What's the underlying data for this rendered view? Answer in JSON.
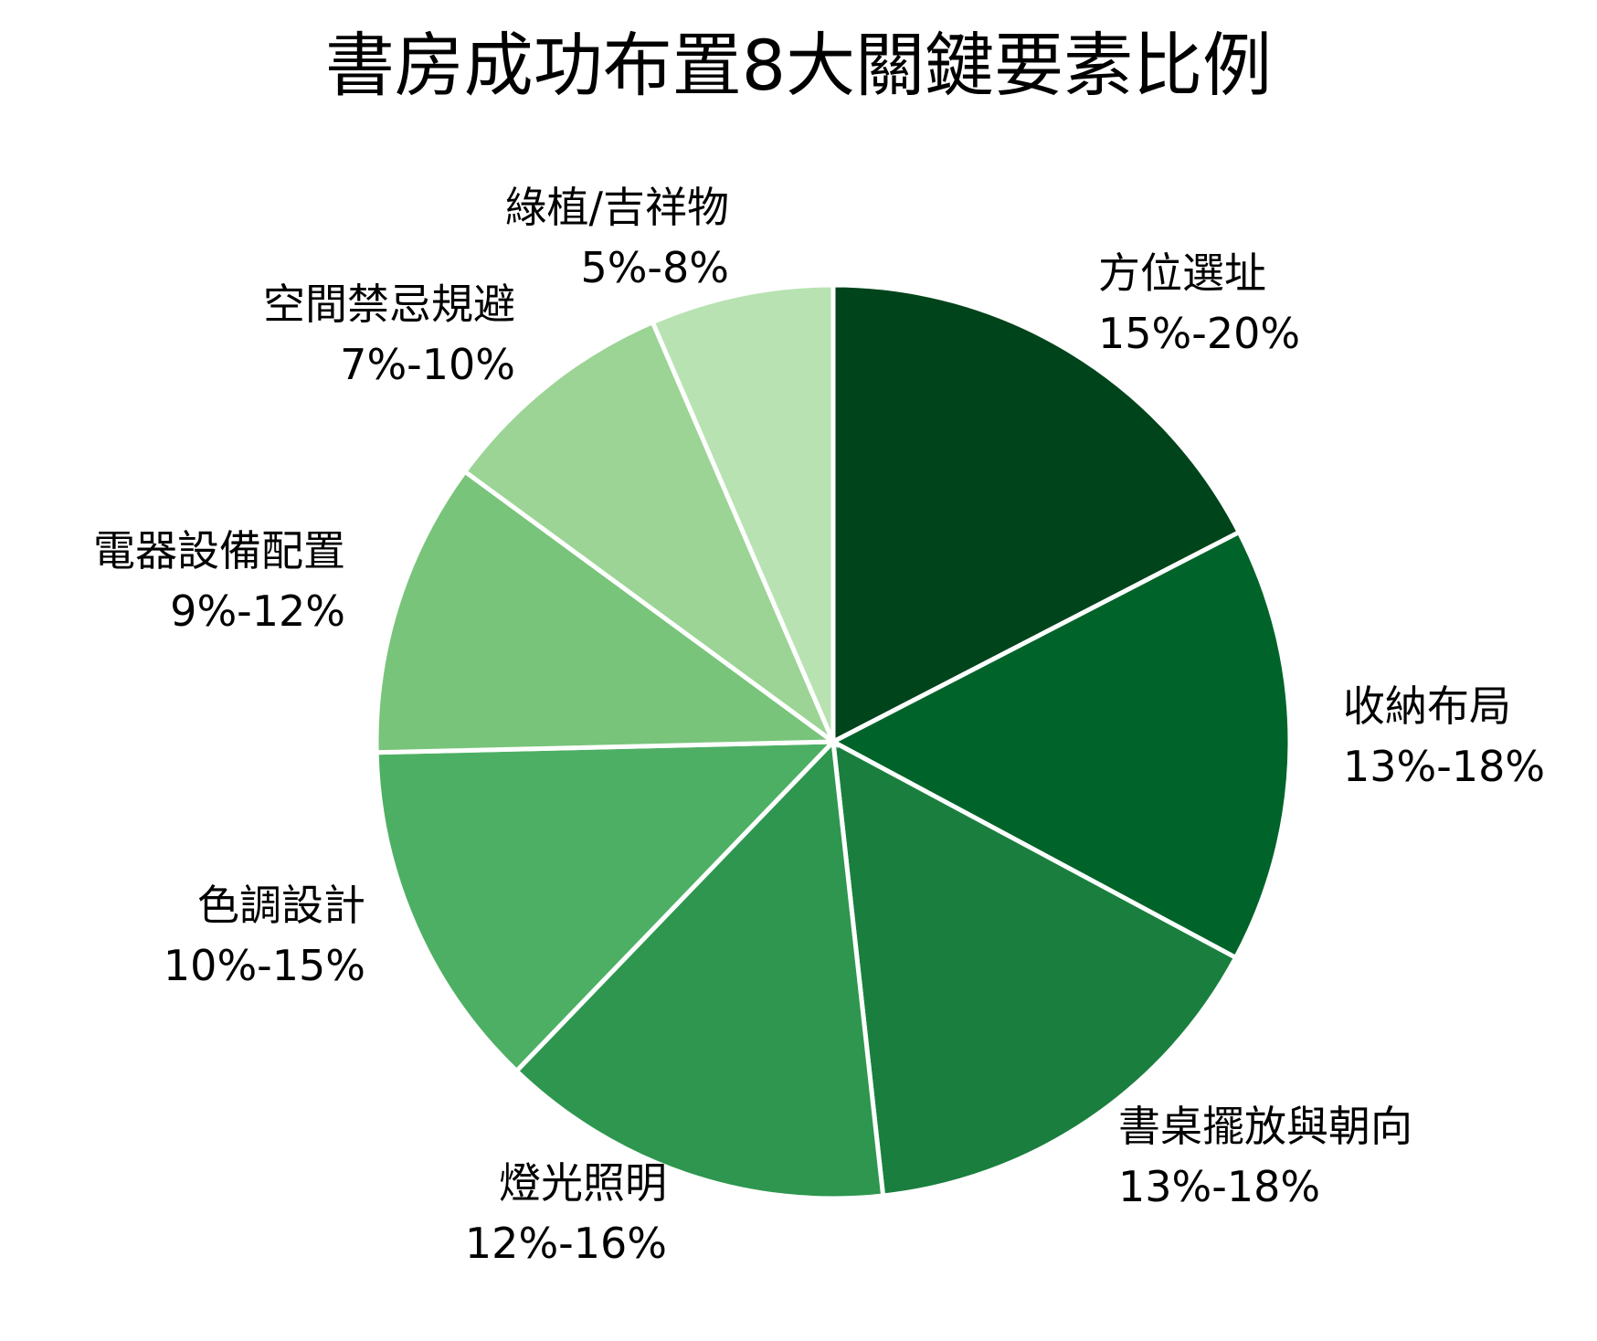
{
  "title": "書房成功布置8大關鍵要素比例",
  "chart_data": {
    "type": "pie",
    "title": "書房成功布置8大關鍵要素比例",
    "categories": [
      "方位選址",
      "收納布局",
      "書桌擺放與朝向",
      "燈光照明",
      "色調設計",
      "電器設備配置",
      "空間禁忌規避",
      "綠植/吉祥物"
    ],
    "range_labels": [
      "15%-20%",
      "13%-18%",
      "13%-18%",
      "12%-16%",
      "10%-15%",
      "9%-12%",
      "7%-10%",
      "5%-8%"
    ],
    "values": [
      17.5,
      15.5,
      15.5,
      14,
      12.5,
      10.5,
      8.5,
      6.5
    ],
    "colors": [
      "#00441b",
      "#00642a",
      "#1a7f3e",
      "#2e964f",
      "#4daf64",
      "#78c47a",
      "#9bd495",
      "#b8e2b2"
    ],
    "start_angle": "12 o'clock, clockwise",
    "legend": "none (labels outside slices)"
  },
  "labels": [
    {
      "name": "方位選址",
      "range": "15%-20%"
    },
    {
      "name": "收納布局",
      "range": "13%-18%"
    },
    {
      "name": "書桌擺放與朝向",
      "range": "13%-18%"
    },
    {
      "name": "燈光照明",
      "range": "12%-16%"
    },
    {
      "name": "色調設計",
      "range": "10%-15%"
    },
    {
      "name": "電器設備配置",
      "range": "9%-12%"
    },
    {
      "name": "空間禁忌規避",
      "range": "7%-10%"
    },
    {
      "name": "綠植/吉祥物",
      "range": "5%-8%"
    }
  ]
}
